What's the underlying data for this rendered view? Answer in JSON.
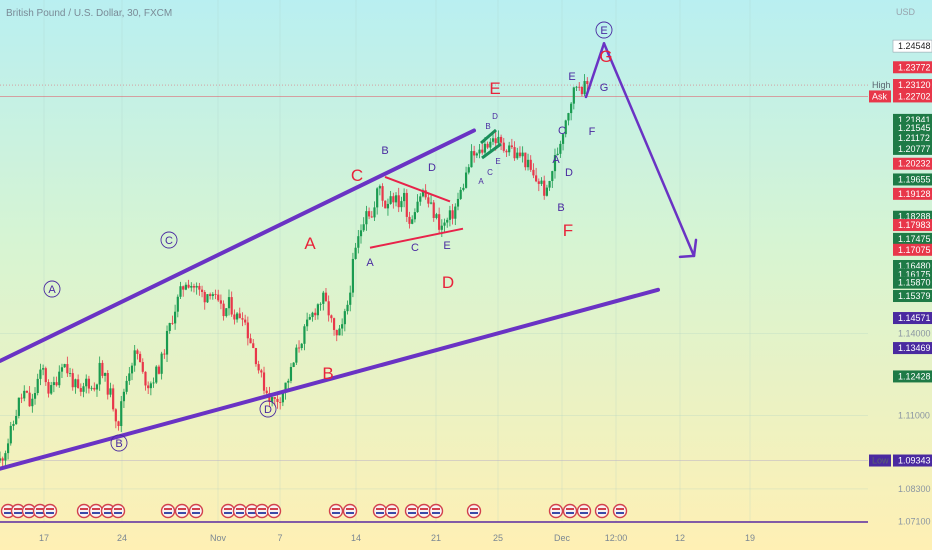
{
  "header": {
    "title": "British Pound / U.S. Dollar, 30, FXCM",
    "currency": "USD"
  },
  "chart_data": {
    "type": "line",
    "title": "British Pound / U.S. Dollar, 30, FXCM",
    "ylim": [
      1.065,
      1.258
    ],
    "x_ticks": [
      "17",
      "24",
      "Nov",
      "7",
      "14",
      "21",
      "25",
      "Dec",
      "12:00",
      "12",
      "19"
    ],
    "y_ticks": [
      "1.14000",
      "1.11000",
      "1.08300",
      "1.07100"
    ],
    "price_tags": [
      {
        "label": "",
        "value": "1.24548",
        "price": 1.24548,
        "color": "#ffffff",
        "text": "#222222"
      },
      {
        "label": "",
        "value": "1.23772",
        "price": 1.23772,
        "color": "#e8374a",
        "text": "#ffffff"
      },
      {
        "label": "High",
        "value": "1.23120",
        "price": 1.2312,
        "color": "#e8374a",
        "text": "#ffffff"
      },
      {
        "label": "Ask",
        "value": "1.22702",
        "price": 1.22702,
        "color": "#e8374a",
        "text": "#ffffff"
      },
      {
        "label": "",
        "value": "1.21841",
        "price": 1.21841,
        "color": "#1e7a46",
        "text": "#ffffff"
      },
      {
        "label": "",
        "value": "1.21545",
        "price": 1.21545,
        "color": "#1e7a46",
        "text": "#ffffff"
      },
      {
        "label": "",
        "value": "1.21172",
        "price": 1.21172,
        "color": "#1e7a46",
        "text": "#ffffff"
      },
      {
        "label": "",
        "value": "1.20777",
        "price": 1.20777,
        "color": "#1e7a46",
        "text": "#ffffff"
      },
      {
        "label": "",
        "value": "1.20232",
        "price": 1.20232,
        "color": "#e8374a",
        "text": "#ffffff"
      },
      {
        "label": "",
        "value": "1.19655",
        "price": 1.19655,
        "color": "#1e7a46",
        "text": "#ffffff"
      },
      {
        "label": "",
        "value": "1.19128",
        "price": 1.19128,
        "color": "#e8374a",
        "text": "#ffffff"
      },
      {
        "label": "",
        "value": "1.18288",
        "price": 1.18288,
        "color": "#1e7a46",
        "text": "#ffffff"
      },
      {
        "label": "",
        "value": "1.17983",
        "price": 1.17983,
        "color": "#e8374a",
        "text": "#ffffff"
      },
      {
        "label": "",
        "value": "1.17475",
        "price": 1.17475,
        "color": "#1e7a46",
        "text": "#ffffff"
      },
      {
        "label": "",
        "value": "1.17075",
        "price": 1.17075,
        "color": "#e8374a",
        "text": "#ffffff"
      },
      {
        "label": "",
        "value": "1.16480",
        "price": 1.1648,
        "color": "#1e7a46",
        "text": "#ffffff"
      },
      {
        "label": "",
        "value": "1.16175",
        "price": 1.16175,
        "color": "#1e7a46",
        "text": "#ffffff"
      },
      {
        "label": "",
        "value": "1.15870",
        "price": 1.1587,
        "color": "#1e7a46",
        "text": "#ffffff"
      },
      {
        "label": "",
        "value": "1.15379",
        "price": 1.15379,
        "color": "#1e7a46",
        "text": "#ffffff"
      },
      {
        "label": "",
        "value": "1.14571",
        "price": 1.14571,
        "color": "#4a2aa0",
        "text": "#ffffff"
      },
      {
        "label": "",
        "value": "1.13469",
        "price": 1.13469,
        "color": "#4a2aa0",
        "text": "#ffffff"
      },
      {
        "label": "",
        "value": "1.12428",
        "price": 1.12428,
        "color": "#1e7a46",
        "text": "#ffffff"
      },
      {
        "label": "Low",
        "value": "1.09343",
        "price": 1.09343,
        "color": "#4a2aa0",
        "text": "#ffffff"
      }
    ],
    "high": 1.2312,
    "ask": 1.22702,
    "low": 1.09343,
    "series_points": [
      1.0934,
      1.0985,
      1.1055,
      1.1148,
      1.1185,
      1.1125,
      1.1225,
      1.1268,
      1.1178,
      1.1228,
      1.1302,
      1.1258,
      1.1212,
      1.1166,
      1.1238,
      1.1185,
      1.1272,
      1.1225,
      1.1162,
      1.1068,
      1.1198,
      1.1288,
      1.1335,
      1.1245,
      1.1212,
      1.1248,
      1.1298,
      1.1398,
      1.1482,
      1.1545,
      1.1598,
      1.1578,
      1.1555,
      1.1538,
      1.1568,
      1.1502,
      1.1472,
      1.1512,
      1.1455,
      1.1482,
      1.1395,
      1.1335,
      1.1238,
      1.1185,
      1.1148,
      1.1168,
      1.1212,
      1.1268,
      1.1352,
      1.1405,
      1.1455,
      1.1502,
      1.1528,
      1.1475,
      1.1375,
      1.1408,
      1.1512,
      1.1675,
      1.1775,
      1.1868,
      1.1818,
      1.1955,
      1.1868,
      1.1918,
      1.1875,
      1.1905,
      1.1805,
      1.1885,
      1.1925,
      1.1878,
      1.1835,
      1.1788,
      1.1812,
      1.1845,
      1.1905,
      1.1978,
      1.2055,
      1.2052,
      1.2088,
      1.2115,
      1.2112,
      1.2078,
      1.2098,
      1.2048,
      1.2058,
      1.2015,
      1.1965,
      1.1958,
      1.1905,
      1.2012,
      1.2085,
      1.2185,
      1.2262,
      1.2325,
      1.2298,
      1.2325
    ],
    "rising_channel": [
      {
        "x": "17",
        "y": 1.1378
      },
      {
        "x": "25",
        "y": 1.2188
      }
    ],
    "lower_channel": [
      {
        "x": "17",
        "y": 1.0948
      },
      {
        "x": "Dec",
        "y": 1.1465
      }
    ],
    "triangle_upper": [
      {
        "x": "14",
        "y": 1.1975
      },
      {
        "x": "21",
        "y": 1.1885
      }
    ],
    "triangle_lower": [
      {
        "x": "14",
        "y": 1.1715
      },
      {
        "x": "21",
        "y": 1.1785
      }
    ],
    "projection": [
      {
        "x": "Dec",
        "y": 1.2465
      },
      {
        "x": "12:00",
        "y": 1.1685
      }
    ],
    "wave_labels_major": [
      {
        "text": "A",
        "x": 52,
        "y": 289
      },
      {
        "text": "B",
        "x": 119,
        "y": 443
      },
      {
        "text": "C",
        "x": 169,
        "y": 240
      },
      {
        "text": "D",
        "x": 268,
        "y": 409
      },
      {
        "text": "E",
        "x": 604,
        "y": 30
      }
    ],
    "wave_labels_red": [
      {
        "text": "A",
        "x": 310,
        "y": 243
      },
      {
        "text": "B",
        "x": 328,
        "y": 373
      },
      {
        "text": "C",
        "x": 357,
        "y": 175
      },
      {
        "text": "D",
        "x": 448,
        "y": 282
      },
      {
        "text": "E",
        "x": 495,
        "y": 88
      },
      {
        "text": "F",
        "x": 568,
        "y": 230
      },
      {
        "text": "G",
        "x": 606,
        "y": 56
      }
    ],
    "wave_labels_small": [
      {
        "text": "B",
        "x": 385,
        "y": 150
      },
      {
        "text": "D",
        "x": 432,
        "y": 167
      },
      {
        "text": "A",
        "x": 370,
        "y": 262
      },
      {
        "text": "C",
        "x": 415,
        "y": 247
      },
      {
        "text": "E",
        "x": 447,
        "y": 245
      },
      {
        "text": "E",
        "x": 572,
        "y": 76
      },
      {
        "text": "C",
        "x": 562,
        "y": 130
      },
      {
        "text": "F",
        "x": 592,
        "y": 131
      },
      {
        "text": "G",
        "x": 604,
        "y": 87
      },
      {
        "text": "A",
        "x": 556,
        "y": 159
      },
      {
        "text": "D",
        "x": 569,
        "y": 172
      },
      {
        "text": "B",
        "x": 561,
        "y": 207
      }
    ],
    "wave_labels_tiny": [
      {
        "text": "A",
        "x": 481,
        "y": 181
      },
      {
        "text": "C",
        "x": 490,
        "y": 172
      },
      {
        "text": "E",
        "x": 498,
        "y": 161
      },
      {
        "text": "B",
        "x": 488,
        "y": 126
      },
      {
        "text": "D",
        "x": 495,
        "y": 116
      }
    ]
  },
  "colors": {
    "bull": "#1a9b50",
    "bear": "#e8374a",
    "channel": "#6a33c4",
    "triangle": "#e8234a",
    "flag": "#1a8f5a"
  }
}
